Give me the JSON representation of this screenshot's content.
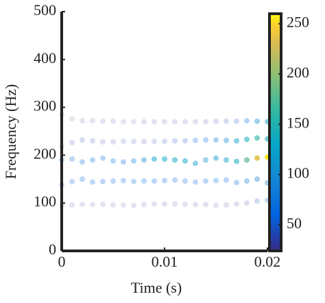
{
  "chart_data": {
    "type": "scatter",
    "x_label": "Time (s)",
    "y_label": "Frequency (Hz)",
    "x": [
      0,
      0.001,
      0.002,
      0.003,
      0.004,
      0.005,
      0.006,
      0.007,
      0.008,
      0.009,
      0.01,
      0.011,
      0.012,
      0.013,
      0.014,
      0.015,
      0.016,
      0.017,
      0.018,
      0.019,
      0.02
    ],
    "xlim": [
      0,
      0.02
    ],
    "xticks": [
      0,
      0.01,
      0.02
    ],
    "ylim": [
      0,
      500
    ],
    "yticks": [
      0,
      100,
      200,
      300,
      400,
      500
    ],
    "colormap": "parula",
    "clim": [
      24,
      260
    ],
    "cticks": [
      50,
      100,
      150,
      200,
      250
    ],
    "series": [
      {
        "values": [
          285,
          276,
          272,
          272,
          271,
          271,
          270,
          270,
          270,
          270,
          270,
          270,
          270,
          270,
          270,
          271,
          271,
          271,
          272,
          271,
          270
        ],
        "intensity": [
          25,
          26,
          27,
          27,
          27,
          27,
          27,
          27,
          28,
          28,
          28,
          28,
          30,
          30,
          32,
          35,
          40,
          50,
          70,
          100,
          120
        ]
      },
      {
        "values": [
          218,
          226,
          232,
          230,
          228,
          228,
          229,
          229,
          229,
          229,
          229,
          230,
          230,
          231,
          232,
          232,
          231,
          230,
          233,
          236,
          234
        ],
        "intensity": [
          30,
          35,
          40,
          38,
          35,
          35,
          35,
          35,
          36,
          36,
          40,
          45,
          50,
          60,
          70,
          80,
          100,
          120,
          140,
          155,
          150
        ]
      },
      {
        "values": [
          190,
          192,
          186,
          190,
          194,
          188,
          186,
          188,
          190,
          192,
          192,
          190,
          188,
          183,
          190,
          194,
          190,
          187,
          190,
          194,
          196
        ],
        "intensity": [
          60,
          65,
          70,
          70,
          68,
          70,
          72,
          80,
          100,
          125,
          130,
          135,
          125,
          110,
          100,
          115,
          120,
          140,
          180,
          235,
          255
        ]
      },
      {
        "values": [
          138,
          145,
          150,
          144,
          145,
          146,
          147,
          145,
          146,
          146,
          147,
          148,
          146,
          144,
          146,
          147,
          148,
          143,
          146,
          150,
          142
        ],
        "intensity": [
          50,
          55,
          60,
          60,
          62,
          62,
          60,
          60,
          62,
          65,
          65,
          65,
          62,
          60,
          62,
          65,
          68,
          70,
          80,
          95,
          90
        ]
      },
      {
        "values": [
          95,
          96,
          97,
          97,
          97,
          96,
          96,
          95,
          97,
          98,
          98,
          98,
          97,
          97,
          97,
          95,
          96,
          98,
          100,
          104,
          106
        ],
        "intensity": [
          25,
          26,
          27,
          27,
          27,
          27,
          27,
          30,
          30,
          30,
          30,
          30,
          30,
          30,
          30,
          28,
          30,
          32,
          35,
          45,
          55
        ]
      }
    ]
  }
}
